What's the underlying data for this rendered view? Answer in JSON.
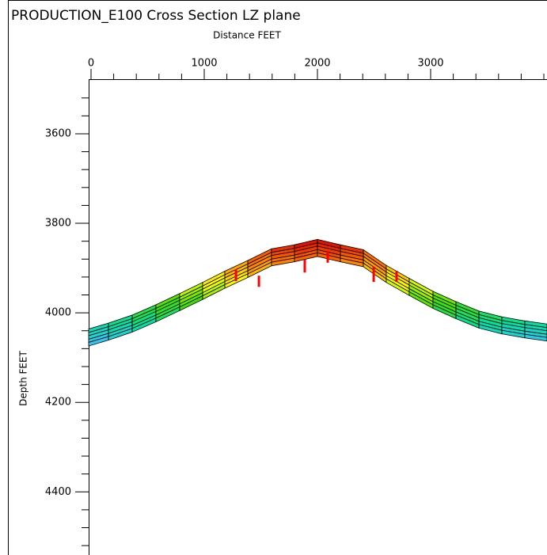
{
  "chart_data": {
    "type": "cross-section",
    "title": "PRODUCTION_E100 Cross Section LZ plane",
    "xlabel": "Distance   FEET",
    "ylabel": "Depth   FEET",
    "xlim": [
      -21,
      4028
    ],
    "ylim": [
      3478,
      4541
    ],
    "xticks": [
      0,
      1000,
      2000,
      3000
    ],
    "yticks": [
      3600,
      3800,
      4000,
      4200,
      4400
    ],
    "xminorticks": [
      200,
      400,
      600,
      800,
      1200,
      1400,
      1600,
      1800,
      2200,
      2400,
      2600,
      2800,
      3200,
      3400,
      3600,
      3800,
      4000
    ],
    "yminorticks": [
      3520,
      3560,
      3640,
      3680,
      3720,
      3760,
      3840,
      3880,
      3920,
      3960,
      4040,
      4080,
      4120,
      4160,
      4240,
      4280,
      4320,
      4360,
      4440,
      4480,
      4520
    ],
    "x": [
      -21,
      154,
      364,
      573,
      783,
      986,
      1182,
      1385,
      1594,
      1797,
      2000,
      2203,
      2406,
      2608,
      2811,
      3021,
      3224,
      3427,
      3629,
      3832,
      4028
    ],
    "surfaces": [
      [
        4036,
        4023,
        4005,
        3982,
        3957,
        3932,
        3907,
        3883,
        3857,
        3848,
        3836,
        3848,
        3859,
        3894,
        3923,
        3952,
        3975,
        3996,
        4009,
        4018,
        4025
      ],
      [
        4044,
        4031,
        4013,
        3990,
        3965,
        3940,
        3915,
        3891,
        3865,
        3856,
        3844,
        3856,
        3867,
        3902,
        3931,
        3960,
        3983,
        4004,
        4017,
        4026,
        4033
      ],
      [
        4051,
        4038,
        4020,
        3997,
        3972,
        3947,
        3922,
        3898,
        3872,
        3863,
        3851,
        3863,
        3874,
        3909,
        3938,
        3967,
        3990,
        4011,
        4024,
        4033,
        4040
      ],
      [
        4059,
        4046,
        4028,
        4005,
        3980,
        3955,
        3930,
        3906,
        3880,
        3871,
        3859,
        3871,
        3882,
        3917,
        3946,
        3975,
        3998,
        4019,
        4032,
        4041,
        4048
      ],
      [
        4066,
        4053,
        4035,
        4012,
        3987,
        3962,
        3937,
        3913,
        3887,
        3878,
        3866,
        3878,
        3889,
        3924,
        3953,
        3982,
        4005,
        4026,
        4039,
        4048,
        4055
      ],
      [
        4074,
        4061,
        4043,
        4020,
        3995,
        3970,
        3945,
        3921,
        3895,
        3886,
        3874,
        3886,
        3897,
        3932,
        3961,
        3990,
        4013,
        4034,
        4047,
        4056,
        4063
      ]
    ],
    "colormap": [
      "#e00000",
      "#ff8000",
      "#ffff00",
      "#40e000",
      "#00e0a0",
      "#40c0ff"
    ],
    "color_range": [
      3840,
      4070
    ],
    "wells": [
      {
        "x": 1280,
        "top": 3903,
        "bottom": 3929
      },
      {
        "x": 1483,
        "top": 3917,
        "bottom": 3942
      },
      {
        "x": 1888,
        "top": 3881,
        "bottom": 3910
      },
      {
        "x": 2091,
        "top": 3862,
        "bottom": 3888
      },
      {
        "x": 2497,
        "top": 3897,
        "bottom": 3931
      },
      {
        "x": 2699,
        "top": 3906,
        "bottom": 3931
      }
    ],
    "well_color": "#ff0000"
  }
}
